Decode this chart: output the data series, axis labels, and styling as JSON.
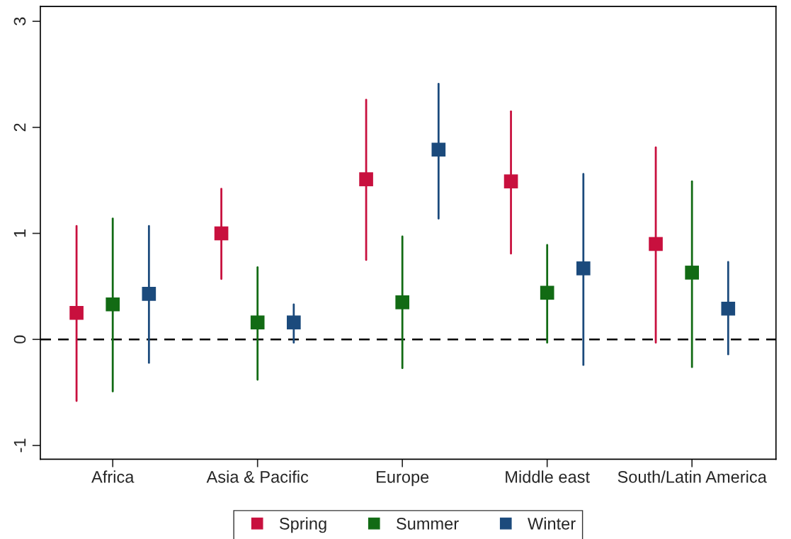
{
  "chart_data": {
    "type": "scatter",
    "categories": [
      "Africa",
      "Asia & Pacific",
      "Europe",
      "Middle east",
      "South/Latin America"
    ],
    "series": [
      {
        "name": "Spring",
        "color": "#c8103e",
        "values": [
          0.25,
          1.0,
          1.51,
          1.49,
          0.9
        ],
        "errors": [
          [
            -0.58,
            1.07
          ],
          [
            0.57,
            1.42
          ],
          [
            0.75,
            2.26
          ],
          [
            0.81,
            2.15
          ],
          [
            -0.03,
            1.81
          ]
        ]
      },
      {
        "name": "Summer",
        "color": "#126b14",
        "values": [
          0.33,
          0.16,
          0.35,
          0.44,
          0.63
        ],
        "errors": [
          [
            -0.49,
            1.14
          ],
          [
            -0.38,
            0.68
          ],
          [
            -0.27,
            0.97
          ],
          [
            -0.03,
            0.89
          ],
          [
            -0.26,
            1.49
          ]
        ]
      },
      {
        "name": "Winter",
        "color": "#1b4a7c",
        "values": [
          0.43,
          0.16,
          1.79,
          0.67,
          0.29
        ],
        "errors": [
          [
            -0.22,
            1.07
          ],
          [
            -0.03,
            0.33
          ],
          [
            1.14,
            2.41
          ],
          [
            -0.24,
            1.56
          ],
          [
            -0.14,
            0.73
          ]
        ]
      }
    ],
    "ylim": [
      -1.13,
      3.14
    ],
    "yticks": [
      -1,
      0,
      1,
      2,
      3
    ],
    "ref_lines": [
      {
        "axis": "y",
        "value": 0,
        "color": "#000000",
        "line_style": "dashed"
      }
    ],
    "marker": "square",
    "grid": false,
    "legend": "bottom"
  }
}
